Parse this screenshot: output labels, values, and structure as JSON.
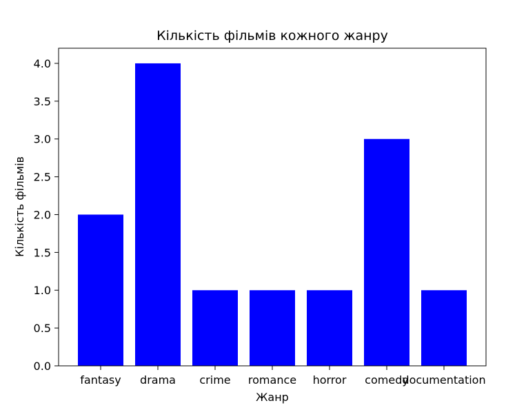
{
  "chart_data": {
    "type": "bar",
    "title": "Кількість фільмів кожного жанру",
    "xlabel": "Жанр",
    "ylabel": "Кількість фільмів",
    "categories": [
      "fantasy",
      "drama",
      "crime",
      "romance",
      "horror",
      "comedy",
      "documentation"
    ],
    "values": [
      2,
      4,
      1,
      1,
      1,
      3,
      1
    ],
    "ylim": [
      0,
      4.2
    ],
    "yticks": [
      "0.0",
      "0.5",
      "1.0",
      "1.5",
      "2.0",
      "2.5",
      "3.0",
      "3.5",
      "4.0"
    ],
    "bar_color": "#0000ff",
    "grid": false,
    "legend": "none"
  }
}
